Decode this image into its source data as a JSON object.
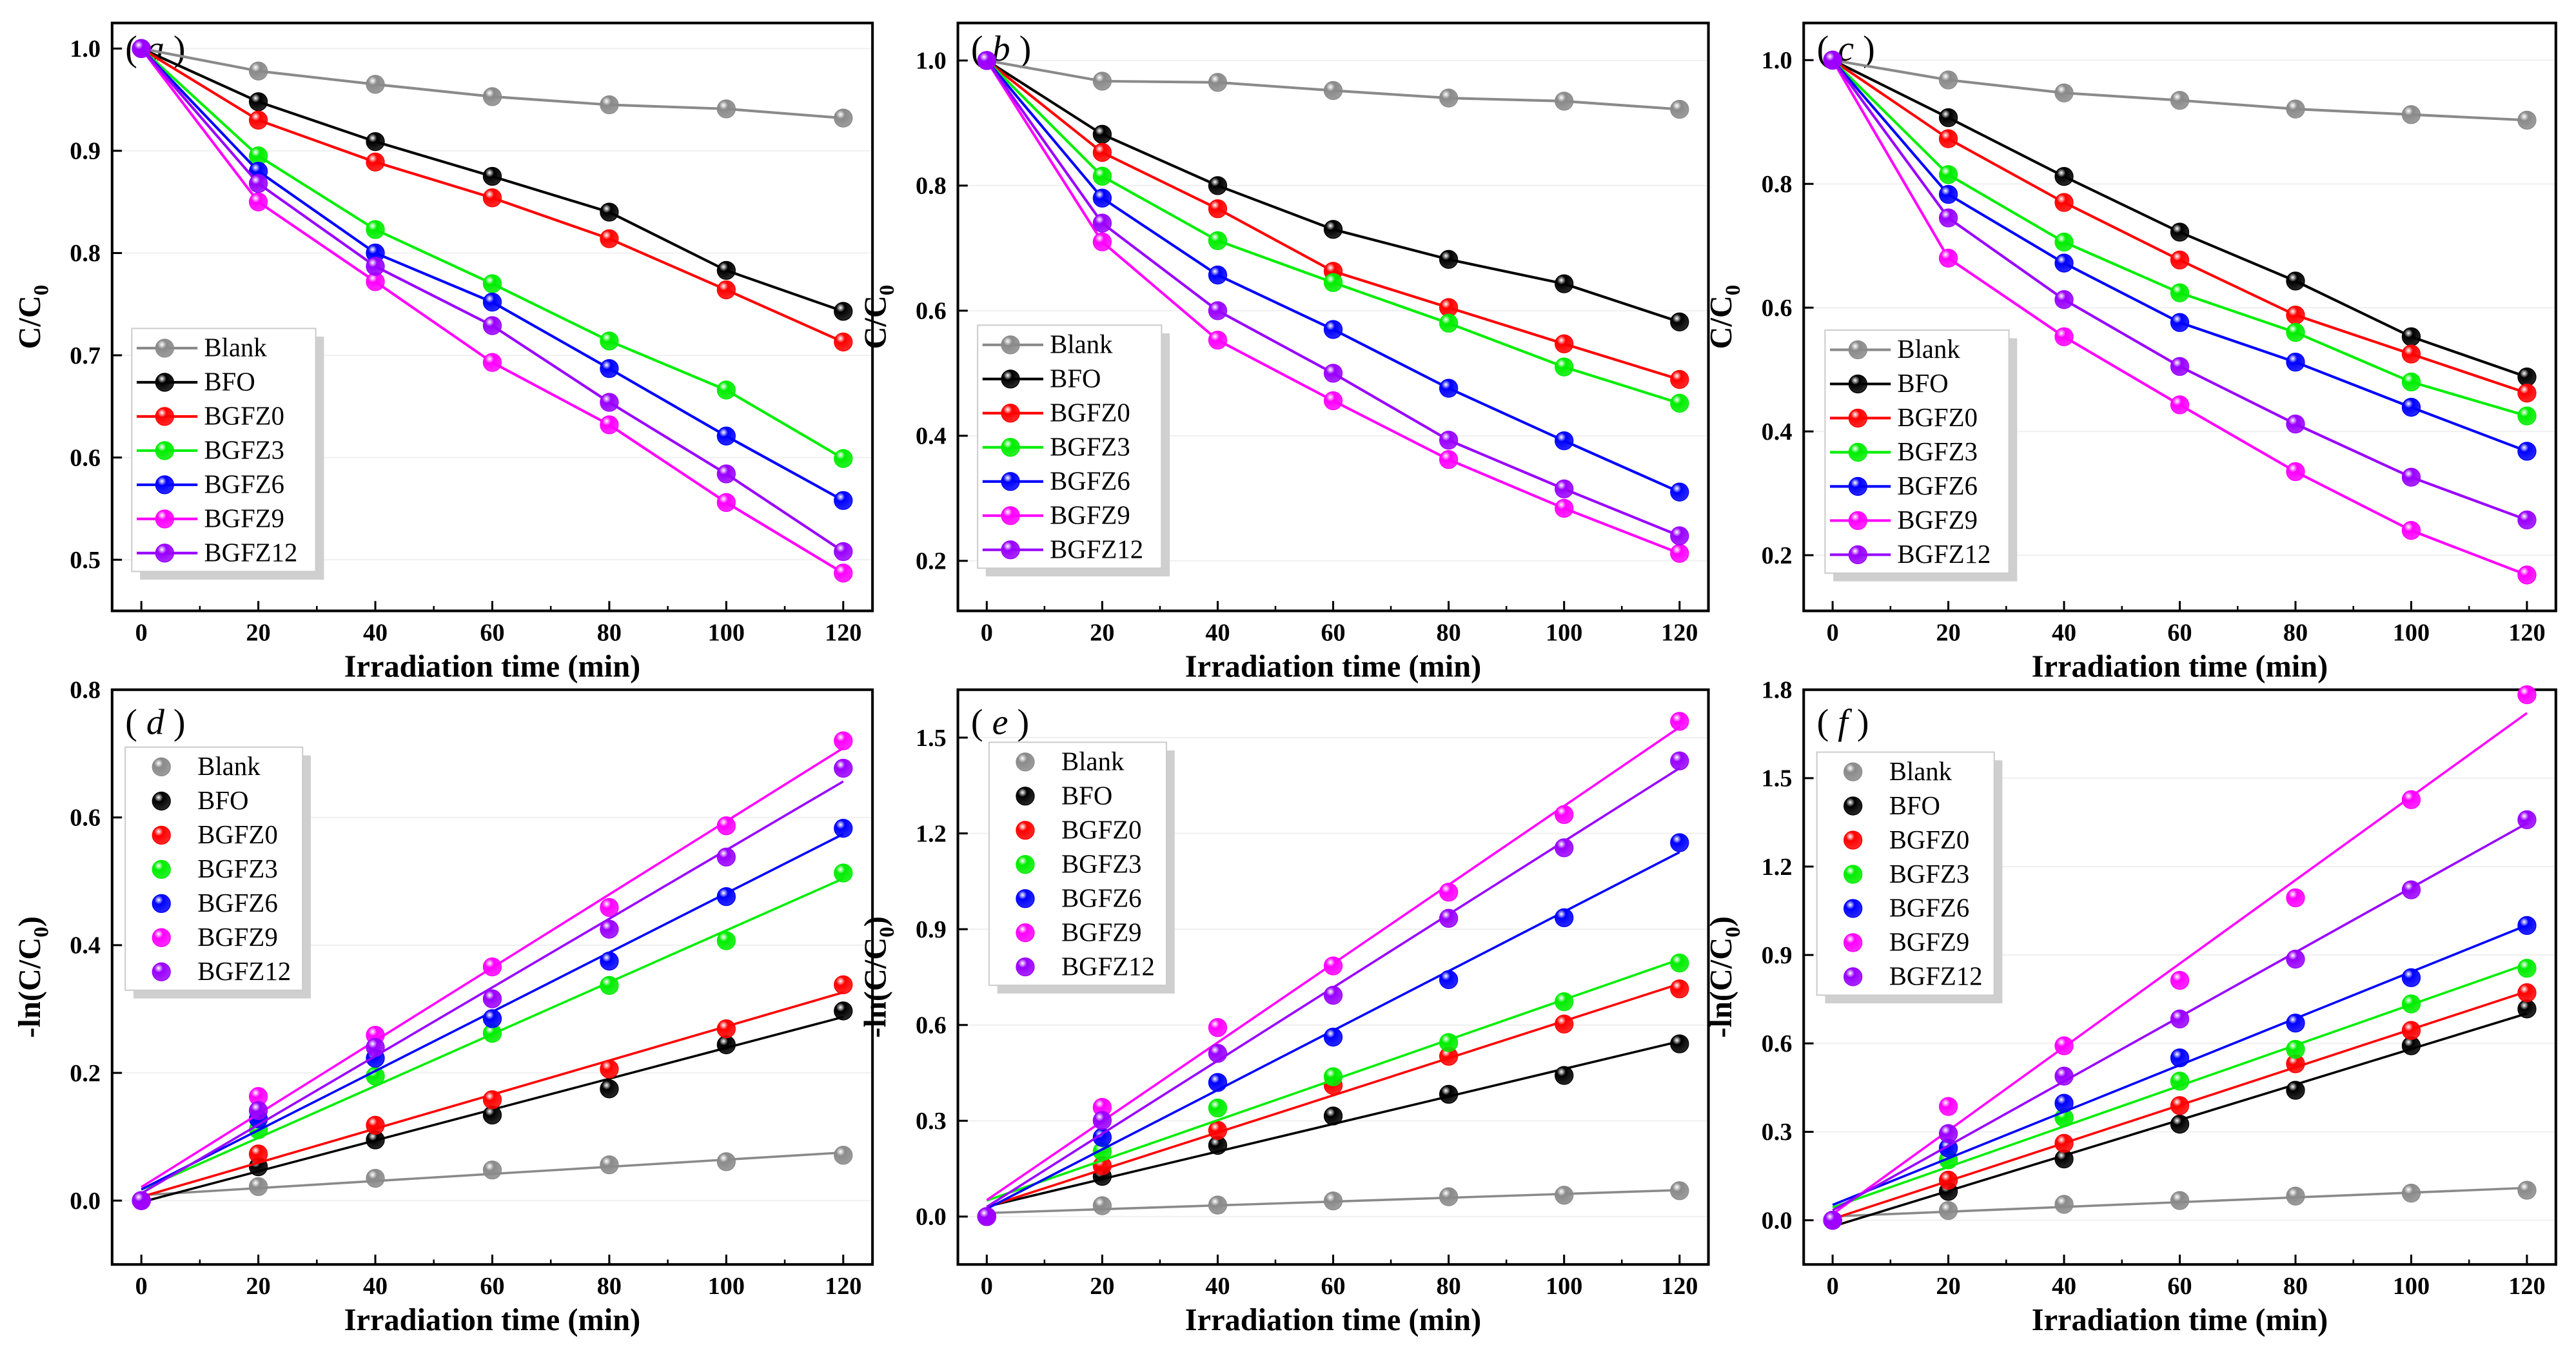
{
  "series_names": [
    "Blank",
    "BFO",
    "BGFZ0",
    "BGFZ3",
    "BGFZ6",
    "BGFZ9",
    "BGFZ12"
  ],
  "colors": {
    "Blank": "#8a8a8a",
    "BFO": "#000000",
    "BGFZ0": "#ff0000",
    "BGFZ3": "#00ee00",
    "BGFZ6": "#0000ff",
    "BGFZ9": "#ff00ff",
    "BGFZ12": "#9900ff"
  },
  "chart_data": [
    {
      "type": "line",
      "panel_label": "a",
      "xlabel": "Irradiation time (min)",
      "ylabel": "C/C0",
      "ylabel_main": "C/C",
      "ylabel_sub": "0",
      "x": [
        0,
        20,
        40,
        60,
        80,
        100,
        120
      ],
      "xlim": [
        -5,
        125
      ],
      "xticks": [
        0,
        20,
        40,
        60,
        80,
        100,
        120
      ],
      "ylim": [
        0.45,
        1.025
      ],
      "yticks": [
        0.5,
        0.6,
        0.7,
        0.8,
        0.9,
        1.0
      ],
      "ytick_labels": [
        "0.5",
        "0.6",
        "0.7",
        "0.8",
        "0.9",
        "1.0"
      ],
      "fit": false,
      "legend": "bottom-left",
      "series": [
        {
          "name": "Blank",
          "values": [
            1.0,
            0.978,
            0.965,
            0.953,
            0.945,
            0.941,
            0.932
          ]
        },
        {
          "name": "BFO",
          "values": [
            1.0,
            0.948,
            0.909,
            0.875,
            0.84,
            0.783,
            0.743
          ]
        },
        {
          "name": "BGFZ0",
          "values": [
            1.0,
            0.93,
            0.889,
            0.854,
            0.814,
            0.764,
            0.713
          ]
        },
        {
          "name": "BGFZ3",
          "values": [
            1.0,
            0.895,
            0.823,
            0.77,
            0.714,
            0.666,
            0.599
          ]
        },
        {
          "name": "BGFZ6",
          "values": [
            1.0,
            0.88,
            0.8,
            0.752,
            0.687,
            0.621,
            0.558
          ]
        },
        {
          "name": "BGFZ9",
          "values": [
            1.0,
            0.85,
            0.772,
            0.693,
            0.632,
            0.556,
            0.487
          ]
        },
        {
          "name": "BGFZ12",
          "values": [
            1.0,
            0.868,
            0.787,
            0.729,
            0.654,
            0.584,
            0.508
          ]
        }
      ]
    },
    {
      "type": "line",
      "panel_label": "b",
      "xlabel": "Irradiation time (min)",
      "ylabel": "C/C0",
      "ylabel_main": "C/C",
      "ylabel_sub": "0",
      "x": [
        0,
        20,
        40,
        60,
        80,
        100,
        120
      ],
      "xlim": [
        -5,
        125
      ],
      "xticks": [
        0,
        20,
        40,
        60,
        80,
        100,
        120
      ],
      "ylim": [
        0.12,
        1.06
      ],
      "yticks": [
        0.2,
        0.4,
        0.6,
        0.8,
        1.0
      ],
      "ytick_labels": [
        "0.2",
        "0.4",
        "0.6",
        "0.8",
        "1.0"
      ],
      "fit": false,
      "legend": "bottom-left",
      "series": [
        {
          "name": "Blank",
          "values": [
            1.0,
            0.967,
            0.965,
            0.952,
            0.94,
            0.935,
            0.922
          ]
        },
        {
          "name": "BFO",
          "values": [
            1.0,
            0.882,
            0.8,
            0.73,
            0.682,
            0.643,
            0.582
          ]
        },
        {
          "name": "BGFZ0",
          "values": [
            1.0,
            0.853,
            0.763,
            0.663,
            0.605,
            0.547,
            0.49
          ]
        },
        {
          "name": "BGFZ3",
          "values": [
            1.0,
            0.815,
            0.712,
            0.645,
            0.58,
            0.51,
            0.452
          ]
        },
        {
          "name": "BGFZ6",
          "values": [
            1.0,
            0.78,
            0.657,
            0.57,
            0.476,
            0.392,
            0.31
          ]
        },
        {
          "name": "BGFZ9",
          "values": [
            1.0,
            0.71,
            0.553,
            0.456,
            0.362,
            0.284,
            0.212
          ]
        },
        {
          "name": "BGFZ12",
          "values": [
            1.0,
            0.74,
            0.6,
            0.5,
            0.393,
            0.315,
            0.24
          ]
        }
      ]
    },
    {
      "type": "line",
      "panel_label": "c",
      "xlabel": "Irradiation time (min)",
      "ylabel": "C/C0",
      "ylabel_main": "C/C",
      "ylabel_sub": "0",
      "x": [
        0,
        20,
        40,
        60,
        80,
        100,
        120
      ],
      "xlim": [
        -5,
        125
      ],
      "xticks": [
        0,
        20,
        40,
        60,
        80,
        100,
        120
      ],
      "ylim": [
        0.11,
        1.06
      ],
      "yticks": [
        0.2,
        0.4,
        0.6,
        0.8,
        1.0
      ],
      "ytick_labels": [
        "0.2",
        "0.4",
        "0.6",
        "0.8",
        "1.0"
      ],
      "fit": false,
      "legend": "bottom-left",
      "series": [
        {
          "name": "Blank",
          "values": [
            1.0,
            0.968,
            0.947,
            0.935,
            0.921,
            0.912,
            0.903
          ]
        },
        {
          "name": "BFO",
          "values": [
            1.0,
            0.907,
            0.812,
            0.722,
            0.643,
            0.553,
            0.488
          ]
        },
        {
          "name": "BGFZ0",
          "values": [
            1.0,
            0.873,
            0.77,
            0.677,
            0.588,
            0.525,
            0.462
          ]
        },
        {
          "name": "BGFZ3",
          "values": [
            1.0,
            0.815,
            0.706,
            0.624,
            0.56,
            0.48,
            0.425
          ]
        },
        {
          "name": "BGFZ6",
          "values": [
            1.0,
            0.783,
            0.672,
            0.576,
            0.512,
            0.439,
            0.368
          ]
        },
        {
          "name": "BGFZ9",
          "values": [
            1.0,
            0.68,
            0.553,
            0.443,
            0.335,
            0.24,
            0.168
          ]
        },
        {
          "name": "BGFZ12",
          "values": [
            1.0,
            0.745,
            0.613,
            0.505,
            0.412,
            0.326,
            0.257
          ]
        }
      ]
    },
    {
      "type": "scatter",
      "panel_label": "d",
      "xlabel": "Irradiation time (min)",
      "ylabel": "-ln(C/C0)",
      "ylabel_main": "-ln(C/C",
      "ylabel_sub": "0",
      "ylabel_end": ")",
      "x": [
        0,
        20,
        40,
        60,
        80,
        100,
        120
      ],
      "xlim": [
        -5,
        125
      ],
      "xticks": [
        0,
        20,
        40,
        60,
        80,
        100,
        120
      ],
      "ylim": [
        -0.1,
        0.8
      ],
      "yticks": [
        0,
        0.2,
        0.4,
        0.6,
        0.8
      ],
      "ytick_labels": [
        "0.0",
        "0.2",
        "0.4",
        "0.6",
        "0.8"
      ],
      "fit": true,
      "legend": "top-left",
      "series": [
        {
          "name": "Blank",
          "values": [
            0,
            0.022,
            0.035,
            0.048,
            0.056,
            0.061,
            0.071
          ]
        },
        {
          "name": "BFO",
          "values": [
            0,
            0.053,
            0.095,
            0.134,
            0.175,
            0.244,
            0.297
          ]
        },
        {
          "name": "BGFZ0",
          "values": [
            0,
            0.073,
            0.118,
            0.158,
            0.206,
            0.269,
            0.338
          ]
        },
        {
          "name": "BGFZ3",
          "values": [
            0,
            0.111,
            0.195,
            0.262,
            0.337,
            0.407,
            0.513
          ]
        },
        {
          "name": "BGFZ6",
          "values": [
            0,
            0.128,
            0.223,
            0.285,
            0.375,
            0.476,
            0.583
          ]
        },
        {
          "name": "BGFZ9",
          "values": [
            0,
            0.163,
            0.259,
            0.366,
            0.459,
            0.587,
            0.72
          ]
        },
        {
          "name": "BGFZ12",
          "values": [
            0,
            0.141,
            0.24,
            0.316,
            0.425,
            0.538,
            0.677
          ]
        }
      ]
    },
    {
      "type": "scatter",
      "panel_label": "e",
      "xlabel": "Irradiation time (min)",
      "ylabel": "-ln(C/C0)",
      "ylabel_main": "-ln(C/C",
      "ylabel_sub": "0",
      "ylabel_end": ")",
      "x": [
        0,
        20,
        40,
        60,
        80,
        100,
        120
      ],
      "xlim": [
        -5,
        125
      ],
      "xticks": [
        0,
        20,
        40,
        60,
        80,
        100,
        120
      ],
      "ylim": [
        -0.15,
        1.65
      ],
      "yticks": [
        0,
        0.3,
        0.6,
        0.9,
        1.2,
        1.5
      ],
      "ytick_labels": [
        "0.0",
        "0.3",
        "0.6",
        "0.9",
        "1.2",
        "1.5"
      ],
      "fit": true,
      "legend": "top-left",
      "series": [
        {
          "name": "Blank",
          "values": [
            0,
            0.034,
            0.036,
            0.049,
            0.062,
            0.067,
            0.081
          ]
        },
        {
          "name": "BFO",
          "values": [
            0,
            0.126,
            0.223,
            0.315,
            0.383,
            0.442,
            0.541
          ]
        },
        {
          "name": "BGFZ0",
          "values": [
            0,
            0.159,
            0.27,
            0.411,
            0.502,
            0.603,
            0.713
          ]
        },
        {
          "name": "BGFZ3",
          "values": [
            0,
            0.204,
            0.34,
            0.438,
            0.545,
            0.673,
            0.794
          ]
        },
        {
          "name": "BGFZ6",
          "values": [
            0,
            0.248,
            0.42,
            0.562,
            0.742,
            0.936,
            1.171
          ]
        },
        {
          "name": "BGFZ9",
          "values": [
            0,
            0.342,
            0.592,
            0.785,
            1.016,
            1.259,
            1.551
          ]
        },
        {
          "name": "BGFZ12",
          "values": [
            0,
            0.301,
            0.511,
            0.693,
            0.934,
            1.155,
            1.427
          ]
        }
      ]
    },
    {
      "type": "scatter",
      "panel_label": "f",
      "xlabel": "Irradiation time (min)",
      "ylabel": "-ln(C/C0)",
      "ylabel_main": "-ln(C/C",
      "ylabel_sub": "0",
      "ylabel_end": ")",
      "x": [
        0,
        20,
        40,
        60,
        80,
        100,
        120
      ],
      "xlim": [
        -5,
        125
      ],
      "xticks": [
        0,
        20,
        40,
        60,
        80,
        100,
        120
      ],
      "ylim": [
        -0.15,
        1.8
      ],
      "yticks": [
        0,
        0.3,
        0.6,
        0.9,
        1.2,
        1.5,
        1.8
      ],
      "ytick_labels": [
        "0.0",
        "0.3",
        "0.6",
        "0.9",
        "1.2",
        "1.5",
        "1.8"
      ],
      "fit": true,
      "legend": "top-left",
      "series": [
        {
          "name": "Blank",
          "values": [
            0,
            0.033,
            0.054,
            0.067,
            0.082,
            0.092,
            0.102
          ]
        },
        {
          "name": "BFO",
          "values": [
            0,
            0.098,
            0.208,
            0.326,
            0.441,
            0.592,
            0.717
          ]
        },
        {
          "name": "BGFZ0",
          "values": [
            0,
            0.136,
            0.261,
            0.389,
            0.531,
            0.644,
            0.772
          ]
        },
        {
          "name": "BGFZ3",
          "values": [
            0,
            0.205,
            0.348,
            0.472,
            0.58,
            0.734,
            0.855
          ]
        },
        {
          "name": "BGFZ6",
          "values": [
            0,
            0.245,
            0.397,
            0.551,
            0.669,
            0.823,
            1.0
          ]
        },
        {
          "name": "BGFZ9",
          "values": [
            0,
            0.386,
            0.592,
            0.814,
            1.094,
            1.427,
            1.783
          ]
        },
        {
          "name": "BGFZ12",
          "values": [
            0,
            0.294,
            0.489,
            0.683,
            0.886,
            1.121,
            1.359
          ]
        }
      ]
    }
  ]
}
